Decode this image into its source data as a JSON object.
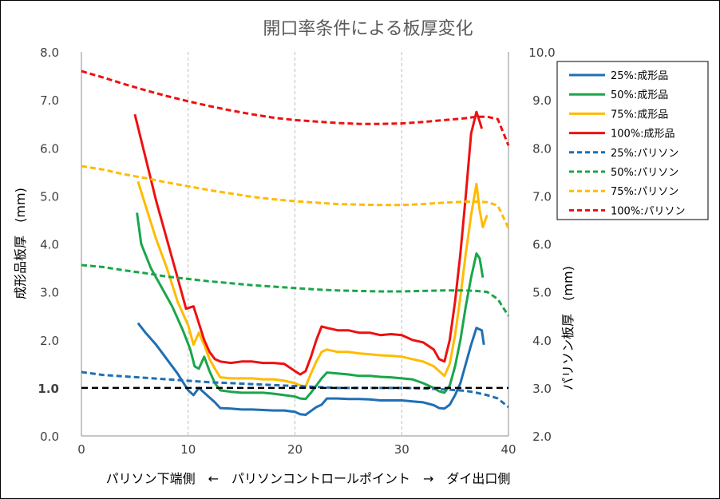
{
  "chart_data": {
    "type": "line",
    "title": "開口率条件による板厚変化",
    "xlabel": "パリソン下端側　←　パリソンコントロールポイント　→　ダイ出口側",
    "ylabel_left": "成形品板厚　(mm)",
    "ylabel_right": "パリソン板厚　(mm)",
    "xlim": [
      0,
      40
    ],
    "ylim_left": [
      0,
      8
    ],
    "ylim_right": [
      2,
      10
    ],
    "x_ticks": [
      "0",
      "10",
      "20",
      "30",
      "40"
    ],
    "y_ticks_left": [
      "0.0",
      "1.0",
      "2.0",
      "3.0",
      "4.0",
      "5.0",
      "6.0",
      "7.0",
      "8.0"
    ],
    "y_ticks_right": [
      "2.0",
      "3.0",
      "4.0",
      "5.0",
      "6.0",
      "7.0",
      "8.0",
      "9.0",
      "10.0"
    ],
    "grid": "vertical dashed",
    "legend_position": "right-top",
    "reference_line": {
      "y": 1.0,
      "axis": "left",
      "style": "dashed",
      "color": "#000000"
    },
    "series": [
      {
        "name": "25%:成形品",
        "axis": "left",
        "style": "solid",
        "color": "#1f6fb4",
        "x": [
          5.3,
          6,
          7,
          8,
          9,
          10,
          10.5,
          11,
          11.5,
          12,
          12.5,
          13,
          14,
          15,
          16,
          17,
          18,
          19,
          20,
          20.5,
          21,
          21.5,
          22,
          22.5,
          23,
          24,
          25,
          26,
          27,
          28,
          29,
          30,
          31,
          32,
          33,
          33.5,
          34,
          34.5,
          35,
          35.5,
          36,
          36.5,
          37,
          37.5,
          37.7
        ],
        "y": [
          2.35,
          2.15,
          1.9,
          1.6,
          1.3,
          0.95,
          0.85,
          1.0,
          0.9,
          0.8,
          0.7,
          0.58,
          0.57,
          0.55,
          0.55,
          0.54,
          0.53,
          0.53,
          0.5,
          0.45,
          0.44,
          0.52,
          0.6,
          0.65,
          0.78,
          0.78,
          0.77,
          0.77,
          0.76,
          0.74,
          0.74,
          0.74,
          0.72,
          0.7,
          0.64,
          0.58,
          0.57,
          0.65,
          0.85,
          1.1,
          1.5,
          1.9,
          2.25,
          2.2,
          1.9
        ]
      },
      {
        "name": "50%:成形品",
        "axis": "left",
        "style": "solid",
        "color": "#1aa64a",
        "x": [
          5.2,
          5.6,
          6.5,
          7.5,
          8.5,
          9.5,
          10.2,
          10.6,
          11,
          11.5,
          12,
          12.5,
          13,
          14,
          15,
          16,
          17,
          18,
          19,
          20,
          20.5,
          21,
          21.5,
          22,
          22.5,
          23,
          24,
          25,
          26,
          27,
          28,
          29,
          30,
          31,
          32,
          33,
          33.5,
          34,
          34.5,
          35,
          35.5,
          36,
          36.5,
          37,
          37.3,
          37.6
        ],
        "y": [
          4.65,
          4.0,
          3.5,
          3.1,
          2.7,
          2.2,
          1.8,
          1.45,
          1.4,
          1.65,
          1.35,
          1.1,
          0.95,
          0.92,
          0.9,
          0.9,
          0.9,
          0.88,
          0.85,
          0.82,
          0.78,
          0.77,
          0.9,
          1.05,
          1.2,
          1.32,
          1.3,
          1.28,
          1.25,
          1.25,
          1.23,
          1.22,
          1.2,
          1.18,
          1.1,
          1.0,
          0.93,
          0.9,
          1.05,
          1.45,
          2.0,
          2.7,
          3.3,
          3.8,
          3.7,
          3.3
        ]
      },
      {
        "name": "75%:成形品",
        "axis": "left",
        "style": "solid",
        "color": "#ffbb00",
        "x": [
          5.3,
          6,
          7,
          8,
          9,
          10,
          10.5,
          11,
          11.5,
          12,
          12.5,
          13,
          14,
          15,
          16,
          17,
          18,
          19,
          20,
          20.5,
          21,
          21.5,
          22,
          22.5,
          23,
          24,
          25,
          26,
          27,
          28,
          29,
          30,
          31,
          32,
          33,
          33.5,
          34,
          34.5,
          35,
          35.5,
          36,
          36.5,
          37,
          37.3,
          37.6,
          38
        ],
        "y": [
          5.3,
          4.8,
          4.1,
          3.5,
          2.8,
          2.3,
          1.9,
          2.15,
          1.9,
          1.6,
          1.4,
          1.22,
          1.2,
          1.2,
          1.2,
          1.18,
          1.18,
          1.15,
          1.1,
          1.05,
          1.03,
          1.3,
          1.55,
          1.75,
          1.8,
          1.75,
          1.75,
          1.72,
          1.7,
          1.68,
          1.67,
          1.65,
          1.6,
          1.55,
          1.45,
          1.35,
          1.25,
          1.5,
          2.1,
          2.9,
          3.8,
          4.6,
          5.25,
          4.7,
          4.35,
          4.6
        ]
      },
      {
        "name": "100%:成形品",
        "axis": "left",
        "style": "solid",
        "color": "#ee1010",
        "x": [
          5,
          6,
          7,
          8,
          9,
          9.8,
          10.5,
          11,
          11.5,
          12,
          12.5,
          13,
          14,
          15,
          16,
          17,
          18,
          19,
          20,
          20.5,
          21,
          21.5,
          22,
          22.5,
          23,
          24,
          25,
          26,
          27,
          28,
          29,
          30,
          31,
          32,
          33,
          33.5,
          34,
          34.5,
          35,
          35.5,
          36,
          36.5,
          37,
          37.3,
          37.5
        ],
        "y": [
          6.7,
          5.8,
          4.9,
          4.1,
          3.3,
          2.65,
          2.7,
          2.35,
          2.0,
          1.75,
          1.6,
          1.55,
          1.52,
          1.55,
          1.55,
          1.52,
          1.52,
          1.5,
          1.35,
          1.28,
          1.35,
          1.65,
          2.0,
          2.28,
          2.25,
          2.2,
          2.2,
          2.15,
          2.15,
          2.1,
          2.12,
          2.1,
          2.0,
          1.95,
          1.8,
          1.6,
          1.55,
          2.0,
          2.8,
          3.8,
          5.0,
          6.3,
          6.75,
          6.55,
          6.4
        ]
      },
      {
        "name": "25%:パリソン",
        "axis": "right",
        "style": "dashed",
        "color": "#1f6fb4",
        "x": [
          0,
          2,
          4,
          6,
          8,
          10,
          12,
          14,
          16,
          18,
          20,
          22,
          24,
          26,
          28,
          30,
          32,
          34,
          36,
          37,
          38,
          39,
          40
        ],
        "y": [
          3.33,
          3.27,
          3.24,
          3.21,
          3.18,
          3.15,
          3.12,
          3.1,
          3.08,
          3.06,
          3.04,
          3.02,
          3.0,
          3.0,
          3.0,
          3.0,
          2.99,
          2.97,
          2.94,
          2.9,
          2.85,
          2.78,
          2.6
        ]
      },
      {
        "name": "50%:パリソン",
        "axis": "right",
        "style": "dashed",
        "color": "#1aa64a",
        "x": [
          0,
          2,
          4,
          6,
          8,
          10,
          12,
          14,
          16,
          18,
          20,
          22,
          24,
          26,
          28,
          30,
          32,
          34,
          36,
          37,
          38,
          39,
          40
        ],
        "y": [
          5.56,
          5.52,
          5.45,
          5.39,
          5.32,
          5.27,
          5.22,
          5.18,
          5.14,
          5.11,
          5.08,
          5.05,
          5.03,
          5.02,
          5.01,
          5.01,
          5.02,
          5.03,
          5.03,
          5.02,
          5.0,
          4.85,
          4.5
        ]
      },
      {
        "name": "75%:パリソン",
        "axis": "right",
        "style": "dashed",
        "color": "#ffbb00",
        "x": [
          0,
          2,
          4,
          6,
          8,
          10,
          12,
          14,
          16,
          18,
          20,
          22,
          24,
          26,
          28,
          30,
          32,
          34,
          36,
          37,
          38,
          39,
          40
        ],
        "y": [
          7.62,
          7.55,
          7.45,
          7.37,
          7.28,
          7.2,
          7.12,
          7.05,
          6.98,
          6.93,
          6.89,
          6.86,
          6.83,
          6.82,
          6.81,
          6.81,
          6.83,
          6.86,
          6.88,
          6.88,
          6.87,
          6.8,
          6.33
        ]
      },
      {
        "name": "100%:パリソン",
        "axis": "right",
        "style": "dashed",
        "color": "#ee1010",
        "x": [
          0,
          2,
          4,
          6,
          8,
          10,
          12,
          14,
          16,
          18,
          20,
          22,
          24,
          26,
          28,
          30,
          32,
          34,
          36,
          37,
          38,
          39,
          40
        ],
        "y": [
          9.6,
          9.47,
          9.33,
          9.2,
          9.08,
          8.97,
          8.87,
          8.78,
          8.7,
          8.63,
          8.58,
          8.55,
          8.52,
          8.5,
          8.5,
          8.51,
          8.54,
          8.58,
          8.62,
          8.65,
          8.65,
          8.6,
          8.05
        ]
      }
    ]
  }
}
